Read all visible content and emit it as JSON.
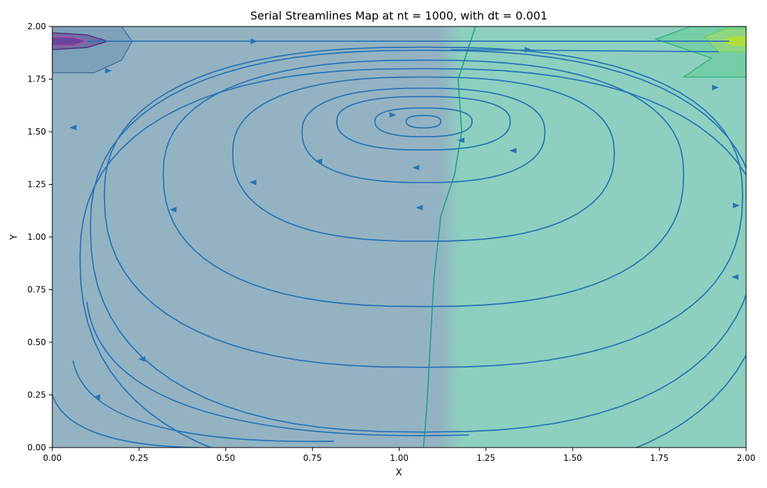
{
  "chart_data": {
    "type": "streamplot",
    "title": "Serial Streamlines Map at nt = 1000, with dt = 0.001",
    "xlabel": "X",
    "ylabel": "Y",
    "xlim": [
      0.0,
      2.0
    ],
    "ylim": [
      0.0,
      2.0
    ],
    "x_ticks": [
      "0.00",
      "0.25",
      "0.50",
      "0.75",
      "1.00",
      "1.25",
      "1.50",
      "1.75",
      "2.00"
    ],
    "y_ticks": [
      "0.00",
      "0.25",
      "0.50",
      "0.75",
      "1.00",
      "1.25",
      "1.50",
      "1.75",
      "2.00"
    ],
    "grid": false,
    "legend": "none",
    "colors": {
      "streamline": "#2a74b5",
      "background_low": "#93b3c3",
      "background_high": "#8dd0c0",
      "contour_mid": "#1f9e89",
      "contour_high": "#35b779",
      "contour_top": "#b5de2b",
      "contour_low": "#482878",
      "contour_lowest": "#6a3e9c"
    },
    "vortex_center": {
      "x": 1.07,
      "y": 1.55
    },
    "dividing_contour": [
      [
        1.07,
        0.0
      ],
      [
        1.08,
        0.2
      ],
      [
        1.09,
        0.5
      ],
      [
        1.1,
        0.8
      ],
      [
        1.12,
        1.1
      ],
      [
        1.16,
        1.3
      ],
      [
        1.18,
        1.5
      ],
      [
        1.17,
        1.75
      ],
      [
        1.22,
        2.0
      ]
    ],
    "streamlines": [
      {
        "center": [
          1.07,
          1.55
        ],
        "rx": 0.05,
        "ry": 0.03,
        "arrows": [
          [
            0.062,
            1.52
          ]
        ]
      },
      {
        "center": [
          1.07,
          1.55
        ],
        "rx": 0.14,
        "ry": 0.07,
        "arrows": [
          [
            0.98,
            1.58
          ]
        ]
      },
      {
        "center": [
          1.07,
          1.55
        ],
        "rx": 0.25,
        "ry": 0.13,
        "arrows": [
          [
            1.18,
            1.46
          ]
        ]
      },
      {
        "center": [
          1.07,
          1.5
        ],
        "rx": 0.35,
        "ry": 0.23,
        "arrows": [
          [
            0.77,
            1.36
          ],
          [
            1.05,
            1.33
          ],
          [
            1.33,
            1.41
          ]
        ]
      },
      {
        "center": [
          1.07,
          1.4
        ],
        "rx": 0.55,
        "ry": 0.4,
        "arrows": [
          [
            0.58,
            1.26
          ]
        ]
      },
      {
        "center": [
          1.07,
          1.3
        ],
        "rx": 0.75,
        "ry": 0.6,
        "arrows": [
          [
            0.35,
            1.13
          ],
          [
            1.06,
            1.14
          ]
        ]
      },
      {
        "center": [
          1.07,
          1.2
        ],
        "rx": 0.92,
        "ry": 0.78,
        "arrows": [
          [
            0.16,
            1.79
          ],
          [
            1.91,
            1.71
          ]
        ]
      },
      {
        "center": [
          1.07,
          1.05
        ],
        "rx": 0.96,
        "ry": 0.93,
        "arrows": [
          [
            0.26,
            0.42
          ],
          [
            1.97,
            1.15
          ]
        ]
      },
      {
        "center": [
          1.07,
          0.9
        ],
        "rx": 0.99,
        "ry": 1.0,
        "arrows": [
          [
            0.13,
            0.24
          ],
          [
            1.97,
            0.81
          ]
        ]
      }
    ]
  }
}
